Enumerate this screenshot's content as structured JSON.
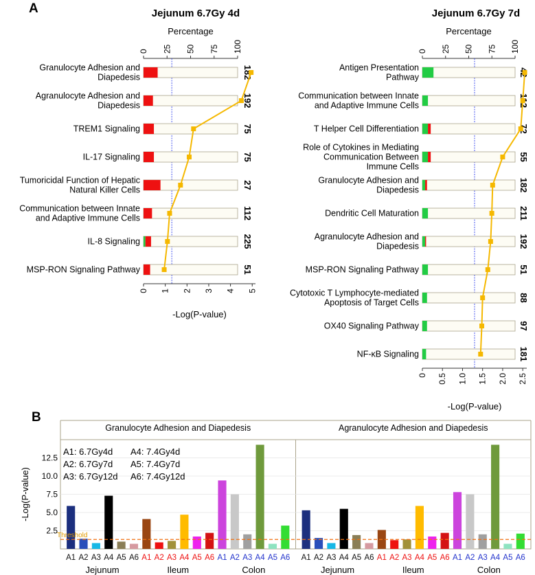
{
  "panel_labels": {
    "a": "A",
    "b": "B"
  },
  "chart_data": [
    {
      "type": "bar",
      "id": "jejunum-4d",
      "title": "Jejunum 6.7Gy 4d",
      "top_axis_label": "Percentage",
      "top_ticks": [
        0,
        25,
        50,
        75,
        100
      ],
      "xlabel": "-Log(P-value)",
      "bottom_ticks": [
        0,
        1,
        2,
        3,
        4,
        5
      ],
      "xlim": [
        0,
        5.15
      ],
      "threshold": 1.3,
      "categories": [
        [
          "Granulocyte Adhesion and",
          "Diapedesis"
        ],
        [
          "Agranulocyte Adhesion and",
          "Diapedesis"
        ],
        [
          "TREM1 Signaling"
        ],
        [
          "IL-17 Signaling"
        ],
        [
          "Tumoricidal Function of Hepatic",
          "Natural Killer Cells"
        ],
        [
          "Communication between Innate",
          "and Adaptive Immune Cells"
        ],
        [
          "IL-8 Signaling"
        ],
        [
          "MSP-RON Signaling Pathway"
        ]
      ],
      "counts": [
        "182",
        "192",
        "75",
        "75",
        "27",
        "112",
        "225",
        "51"
      ],
      "down_pct": [
        0,
        0,
        0,
        0,
        0,
        0,
        2,
        0
      ],
      "up_pct": [
        15,
        10,
        11,
        11,
        18,
        9,
        6,
        7
      ],
      "neglogp": [
        4.95,
        4.5,
        2.3,
        2.1,
        1.7,
        1.2,
        1.1,
        0.95
      ]
    },
    {
      "type": "bar",
      "id": "jejunum-7d",
      "title": "Jejunum 6.7Gy 7d",
      "top_axis_label": "Percentage",
      "top_ticks": [
        0,
        25,
        50,
        75,
        100
      ],
      "xlabel": "-Log(P-value)",
      "bottom_ticks": [
        "0",
        "0.5",
        "1.0",
        "1.5",
        "2.0",
        "2.5"
      ],
      "xlim": [
        0,
        2.6
      ],
      "threshold": 1.3,
      "categories": [
        [
          "Antigen Presentation",
          "Pathway"
        ],
        [
          "Communication between Innate",
          "and Adaptive Immune Cells"
        ],
        [
          "T Helper Cell Differentiation"
        ],
        [
          "Role of Cytokines in Mediating",
          "Communication Between",
          "Immune Cells"
        ],
        [
          "Granulocyte Adhesion and",
          "Diapedesis"
        ],
        [
          "Dendritic Cell Maturation"
        ],
        [
          "Agranulocyte Adhesion and",
          "Diapedesis"
        ],
        [
          "MSP-RON Signaling Pathway"
        ],
        [
          "Cytotoxic T Lymphocyte-mediated",
          "Apoptosis of Target Cells"
        ],
        [
          "OX40 Signaling Pathway"
        ],
        [
          "NF-κB Signaling"
        ]
      ],
      "counts": [
        "42",
        "112",
        "72",
        "55",
        "182",
        "211",
        "192",
        "51",
        "88",
        "97",
        "181"
      ],
      "down_pct": [
        12,
        6,
        6,
        6,
        3,
        6,
        3,
        6,
        5,
        5,
        4
      ],
      "up_pct": [
        0,
        0,
        3,
        3,
        2,
        0,
        1,
        0,
        0,
        0,
        0
      ],
      "neglogp": [
        2.55,
        2.5,
        2.45,
        2.0,
        1.75,
        1.73,
        1.7,
        1.63,
        1.5,
        1.48,
        1.45
      ]
    },
    {
      "type": "bar",
      "id": "tissue-comparison",
      "ylabel": "-Log(P-value)",
      "ylim": [
        0,
        15
      ],
      "yticks": [
        "2.5",
        "5.0",
        "7.5",
        "10.0",
        "12.5"
      ],
      "threshold": 1.3,
      "threshold_label": "Threshold",
      "panels": [
        {
          "title": "Granulocyte Adhesion and Diapedesis",
          "groups": [
            {
              "name": "Jejunum",
              "color": "#111111",
              "values": [
                5.9,
                1.4,
                0.8,
                7.3,
                1.0,
                0.7
              ]
            },
            {
              "name": "Ileum",
              "color": "#ee1111",
              "values": [
                4.1,
                0.9,
                1.1,
                4.7,
                1.7,
                2.2
              ]
            },
            {
              "name": "Colon",
              "color": "#2233cc",
              "values": [
                9.4,
                7.5,
                2.0,
                14.3,
                0.7,
                3.2
              ]
            }
          ]
        },
        {
          "title": "Agranulocyte Adhesion and Diapedesis",
          "groups": [
            {
              "name": "Jejunum",
              "color": "#111111",
              "values": [
                5.3,
                1.5,
                0.8,
                5.5,
                1.9,
                0.8
              ]
            },
            {
              "name": "Ileum",
              "color": "#ee1111",
              "values": [
                2.6,
                1.2,
                1.3,
                5.9,
                1.7,
                2.2
              ]
            },
            {
              "name": "Colon",
              "color": "#2233cc",
              "values": [
                7.8,
                7.5,
                2.0,
                14.3,
                0.7,
                2.1
              ]
            }
          ]
        }
      ],
      "bar_labels": [
        "A1",
        "A2",
        "A3",
        "A4",
        "A5",
        "A6"
      ],
      "bar_colors": [
        [
          "#1c2f7e",
          "#2a4fba",
          "#17b8e6",
          "#000000",
          "#8a7e56",
          "#d69aa0"
        ],
        [
          "#9a4612",
          "#ee1111",
          "#a1913a",
          "#ffbb00",
          "#ee22ee",
          "#d41313"
        ],
        [
          "#cc44dd",
          "#c8c8c8",
          "#a0a0a0",
          "#6f9a3c",
          "#8ee3c0",
          "#33dd33"
        ]
      ],
      "legend": [
        [
          "A1: 6.7Gy4d",
          "A4: 7.4Gy4d"
        ],
        [
          "A2: 6.7Gy7d",
          "A5: 7.4Gy7d"
        ],
        [
          "A3: 6.7Gy12d",
          "A6: 7.4Gy12d"
        ]
      ]
    }
  ]
}
